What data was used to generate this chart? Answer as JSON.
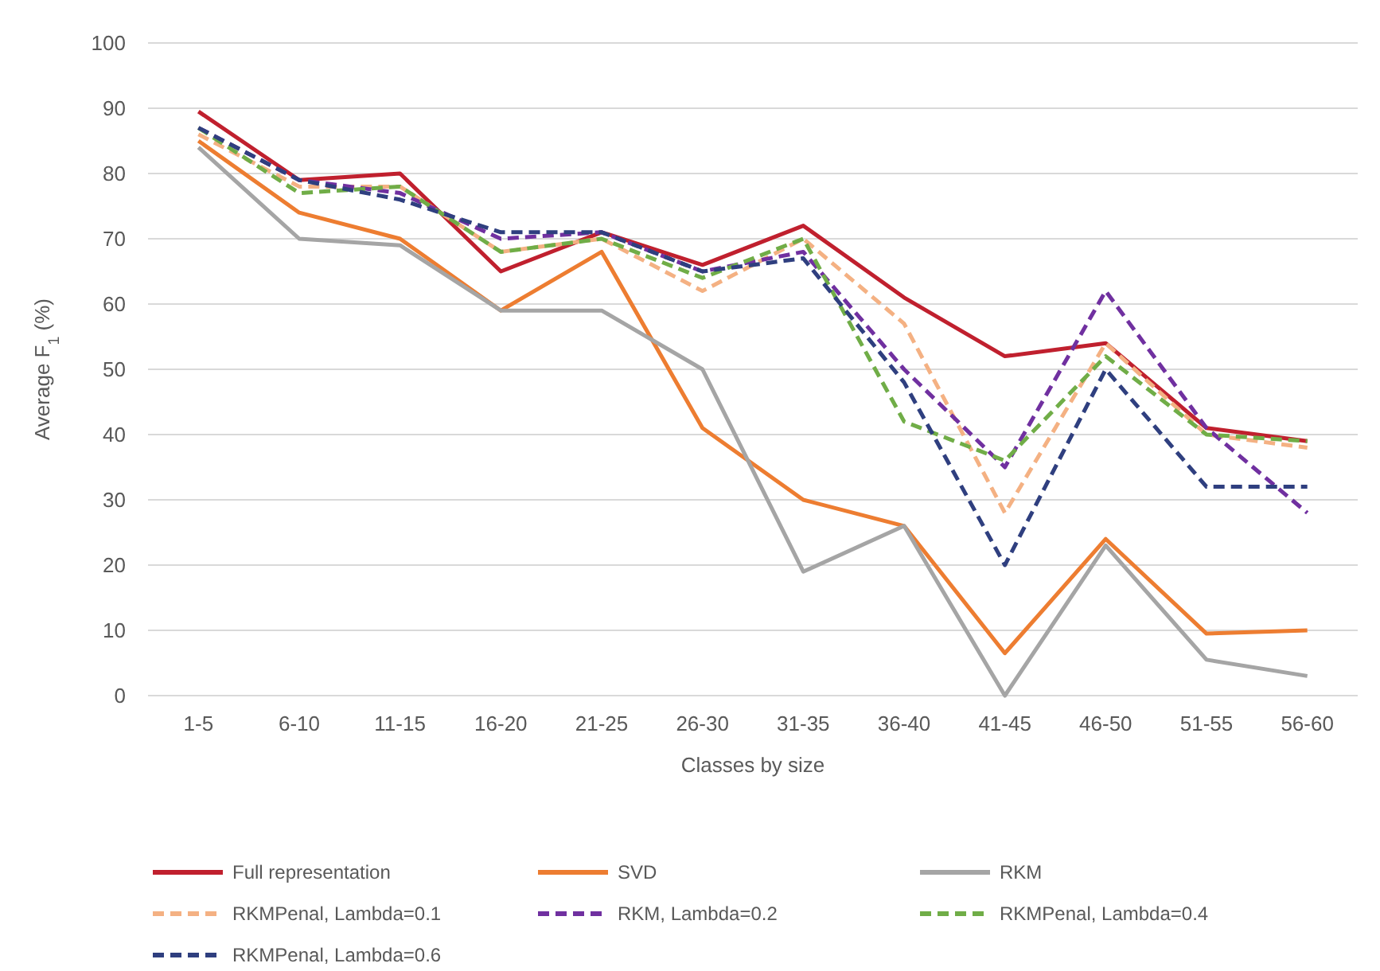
{
  "chart_data": {
    "type": "line",
    "xlabel": "Classes by size",
    "ylabel": "Average F$_{1}$ (%)",
    "categories": [
      "1-5",
      "6-10",
      "11-15",
      "16-20",
      "21-25",
      "26-30",
      "31-35",
      "36-40",
      "41-45",
      "46-50",
      "51-55",
      "56-60"
    ],
    "ylim": [
      0,
      100
    ],
    "yticks": [
      0,
      10,
      20,
      30,
      40,
      50,
      60,
      70,
      80,
      90,
      100
    ],
    "grid": "y",
    "legend": "bottom",
    "marker": "none",
    "series": [
      {
        "name": "Full representation",
        "color": "#c0202e",
        "line_style": "solid",
        "values": [
          89.5,
          79,
          80,
          65,
          71,
          66,
          72,
          61,
          52,
          54,
          41,
          39
        ]
      },
      {
        "name": "SVD",
        "color": "#ed7d31",
        "line_style": "solid",
        "values": [
          85,
          74,
          70,
          59,
          68,
          41,
          30,
          26,
          6.5,
          24,
          9.5,
          10
        ]
      },
      {
        "name": "RKM",
        "color": "#a5a5a5",
        "line_style": "solid",
        "values": [
          84,
          70,
          69,
          59,
          59,
          50,
          19,
          26,
          0,
          23,
          5.5,
          3
        ]
      },
      {
        "name": "RKMPenal, Lambda=0.1",
        "color": "#f4b183",
        "line_style": "dashed",
        "values": [
          86,
          78,
          78,
          68,
          70,
          62,
          70,
          57,
          28,
          54,
          40,
          38
        ]
      },
      {
        "name": "RKM, Lambda=0.2",
        "color": "#7030a0",
        "line_style": "dashed",
        "values": [
          87,
          79,
          77,
          70,
          71,
          65,
          68,
          50,
          35,
          62,
          41,
          28
        ]
      },
      {
        "name": "RKMPenal, Lambda=0.4",
        "color": "#70ad47",
        "line_style": "dashed",
        "values": [
          87,
          77,
          78,
          68,
          70,
          64,
          70,
          42,
          36,
          52,
          40,
          39
        ]
      },
      {
        "name": "RKMPenal, Lambda=0.6",
        "color": "#2f3f7f",
        "line_style": "dashed",
        "values": [
          87,
          79,
          76,
          71,
          71,
          65,
          67,
          48,
          20,
          50,
          32,
          32
        ]
      }
    ]
  }
}
